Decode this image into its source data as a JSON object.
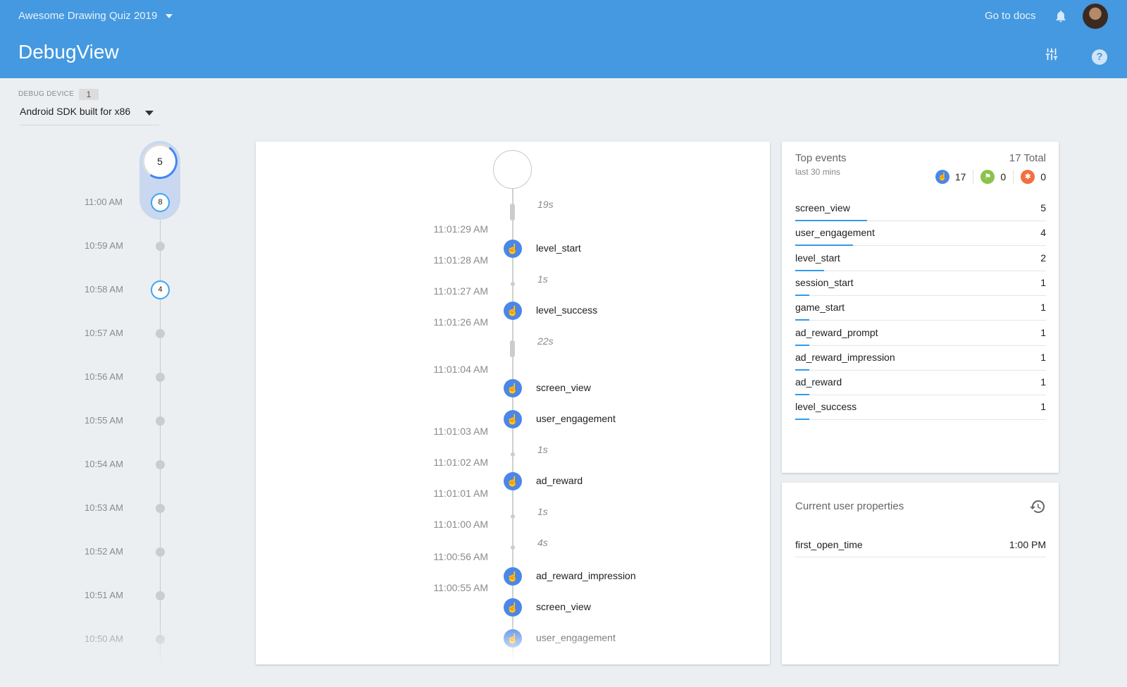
{
  "header": {
    "project": "Awesome Drawing Quiz 2019",
    "title": "DebugView",
    "docs_link": "Go to docs",
    "icons": [
      "bell-icon",
      "avatar",
      "tune-icon",
      "help-icon"
    ]
  },
  "device": {
    "label": "DEBUG DEVICE",
    "count": "1",
    "selected": "Android SDK built for x86"
  },
  "minutes": {
    "current_count": "5",
    "items": [
      {
        "time": "11:00 AM",
        "count": "8"
      },
      {
        "time": "10:59 AM",
        "count": null
      },
      {
        "time": "10:58 AM",
        "count": "4"
      },
      {
        "time": "10:57 AM",
        "count": null
      },
      {
        "time": "10:56 AM",
        "count": null
      },
      {
        "time": "10:55 AM",
        "count": null
      },
      {
        "time": "10:54 AM",
        "count": null
      },
      {
        "time": "10:53 AM",
        "count": null
      },
      {
        "time": "10:52 AM",
        "count": null
      },
      {
        "time": "10:51 AM",
        "count": null
      },
      {
        "time": "10:50 AM",
        "count": null
      }
    ]
  },
  "stream": {
    "times": [
      "11:01:29 AM",
      "11:01:28 AM",
      "11:01:27 AM",
      "11:01:26 AM",
      "11:01:04 AM",
      "11:01:03 AM",
      "11:01:02 AM",
      "11:01:01 AM",
      "11:01:00 AM",
      "11:00:56 AM",
      "11:00:55 AM"
    ],
    "events": [
      "level_start",
      "level_success",
      "screen_view",
      "user_engagement",
      "ad_reward",
      "ad_reward_impression",
      "screen_view",
      "user_engagement"
    ],
    "gaps": [
      {
        "label": "19s",
        "type": "bar"
      },
      {
        "label": "1s",
        "type": "dot"
      },
      {
        "label": "22s",
        "type": "bar"
      },
      {
        "label": "1s",
        "type": "dot"
      },
      {
        "label": "1s",
        "type": "dot"
      },
      {
        "label": "4s",
        "type": "dot"
      }
    ]
  },
  "top_events": {
    "title": "Top events",
    "subtitle": "last 30 mins",
    "total": "17 Total",
    "counts": [
      {
        "icon": "touch-icon",
        "value": "17",
        "color": "#4a87e8"
      },
      {
        "icon": "flag-icon",
        "value": "0",
        "color": "#8bc34a"
      },
      {
        "icon": "bug-icon",
        "value": "0",
        "color": "#f07040"
      }
    ],
    "items": [
      {
        "name": "screen_view",
        "count": 5
      },
      {
        "name": "user_engagement",
        "count": 4
      },
      {
        "name": "level_start",
        "count": 2
      },
      {
        "name": "session_start",
        "count": 1
      },
      {
        "name": "game_start",
        "count": 1
      },
      {
        "name": "ad_reward_prompt",
        "count": 1
      },
      {
        "name": "ad_reward_impression",
        "count": 1
      },
      {
        "name": "ad_reward",
        "count": 1
      },
      {
        "name": "level_success",
        "count": 1
      }
    ]
  },
  "user_properties": {
    "title": "Current user properties",
    "items": [
      {
        "name": "first_open_time",
        "value": "1:00 PM"
      }
    ]
  }
}
